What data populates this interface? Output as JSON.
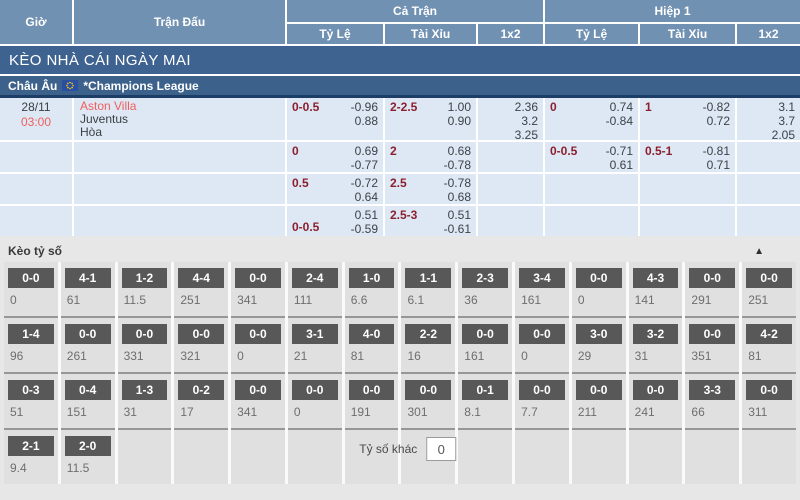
{
  "header": {
    "col_time": "Giờ",
    "col_match": "Trận Đấu",
    "group_full_match": "Cả Trận",
    "group_first_half": "Hiệp 1",
    "sub_handicap": "Tỷ Lệ",
    "sub_over_under": "Tài Xỉu",
    "sub_1x2": "1x2"
  },
  "banner": "KÈO NHÀ CÁI NGÀY MAI",
  "league": {
    "region": "Châu Âu",
    "flag_icon": "eu-flag-icon",
    "name": "*Champions League"
  },
  "match": {
    "date": "28/11",
    "time": "03:00",
    "home": "Aston Villa",
    "away": "Juventus",
    "draw": "Hòa"
  },
  "odds_rows": [
    {
      "ft_handicap": {
        "label": "0-0.5",
        "values": [
          "-0.96",
          "0.88"
        ]
      },
      "ft_over_under": {
        "label": "2-2.5",
        "values": [
          "1.00",
          "0.90"
        ]
      },
      "ft_1x2": [
        "2.36",
        "3.2",
        "3.25"
      ],
      "h1_handicap": {
        "label": "0",
        "values": [
          "0.74",
          "-0.84"
        ]
      },
      "h1_over_under": {
        "label": "1",
        "values": [
          "-0.82",
          "0.72"
        ]
      },
      "h1_1x2": [
        "3.1",
        "3.7",
        "2.05"
      ]
    },
    {
      "ft_handicap": {
        "label": "0",
        "values": [
          "0.69",
          "-0.77"
        ]
      },
      "ft_over_under": {
        "label": "2",
        "values": [
          "0.68",
          "-0.78"
        ]
      },
      "h1_handicap": {
        "label": "0-0.5",
        "values": [
          "-0.71",
          "0.61"
        ]
      },
      "h1_over_under": {
        "label": "0.5-1",
        "values": [
          "-0.81",
          "0.71"
        ]
      }
    },
    {
      "ft_handicap": {
        "label": "0.5",
        "values": [
          "-0.72",
          "0.64"
        ]
      },
      "ft_over_under": {
        "label": "2.5",
        "values": [
          "-0.78",
          "0.68"
        ]
      }
    },
    {
      "ft_handicap": {
        "label": "0-0.5",
        "label_position": "bottom",
        "values": [
          "0.51",
          "-0.59"
        ]
      },
      "ft_over_under": {
        "label": "2.5-3",
        "values": [
          "0.51",
          "-0.61"
        ]
      }
    }
  ],
  "score_section": {
    "title": "Kèo tỷ số",
    "collapse_icon": "chevron-up-icon",
    "rows": [
      [
        {
          "score": "0-0",
          "odds": "0"
        },
        {
          "score": "4-1",
          "odds": "61"
        },
        {
          "score": "1-2",
          "odds": "11.5"
        },
        {
          "score": "4-4",
          "odds": "251"
        },
        {
          "score": "0-0",
          "odds": "341"
        },
        {
          "score": "2-4",
          "odds": "111"
        },
        {
          "score": "1-0",
          "odds": "6.6"
        },
        {
          "score": "1-1",
          "odds": "6.1"
        },
        {
          "score": "2-3",
          "odds": "36"
        },
        {
          "score": "3-4",
          "odds": "161"
        },
        {
          "score": "0-0",
          "odds": "0"
        },
        {
          "score": "4-3",
          "odds": "141"
        },
        {
          "score": "0-0",
          "odds": "291"
        },
        {
          "score": "0-0",
          "odds": "251"
        }
      ],
      [
        {
          "score": "1-4",
          "odds": "96"
        },
        {
          "score": "0-0",
          "odds": "261"
        },
        {
          "score": "0-0",
          "odds": "331"
        },
        {
          "score": "0-0",
          "odds": "321"
        },
        {
          "score": "0-0",
          "odds": "0"
        },
        {
          "score": "3-1",
          "odds": "21"
        },
        {
          "score": "4-0",
          "odds": "81"
        },
        {
          "score": "2-2",
          "odds": "16"
        },
        {
          "score": "0-0",
          "odds": "161"
        },
        {
          "score": "0-0",
          "odds": "0"
        },
        {
          "score": "3-0",
          "odds": "29"
        },
        {
          "score": "3-2",
          "odds": "31"
        },
        {
          "score": "0-0",
          "odds": "351"
        },
        {
          "score": "4-2",
          "odds": "81"
        }
      ],
      [
        {
          "score": "0-3",
          "odds": "51"
        },
        {
          "score": "0-4",
          "odds": "151"
        },
        {
          "score": "1-3",
          "odds": "31"
        },
        {
          "score": "0-2",
          "odds": "17"
        },
        {
          "score": "0-0",
          "odds": "341"
        },
        {
          "score": "0-0",
          "odds": "0"
        },
        {
          "score": "0-0",
          "odds": "191"
        },
        {
          "score": "0-0",
          "odds": "301"
        },
        {
          "score": "0-1",
          "odds": "8.1"
        },
        {
          "score": "0-0",
          "odds": "7.7"
        },
        {
          "score": "0-0",
          "odds": "211"
        },
        {
          "score": "0-0",
          "odds": "241"
        },
        {
          "score": "3-3",
          "odds": "66"
        },
        {
          "score": "0-0",
          "odds": "311"
        }
      ],
      [
        {
          "score": "2-1",
          "odds": "9.4"
        },
        {
          "score": "2-0",
          "odds": "11.5"
        }
      ]
    ],
    "other_score_label": "Tỷ số khác",
    "other_score_value": "0"
  },
  "accents": {
    "header_blue": "#7191b2",
    "banner_blue": "#3e6390",
    "league_blue": "#3c618b",
    "league_border": "#1c3e66",
    "odds_cell_blue": "#dde8f4",
    "handicap_maroon": "#8c1f2e",
    "team_red": "#f05e5e",
    "score_button_gray": "#585858"
  }
}
